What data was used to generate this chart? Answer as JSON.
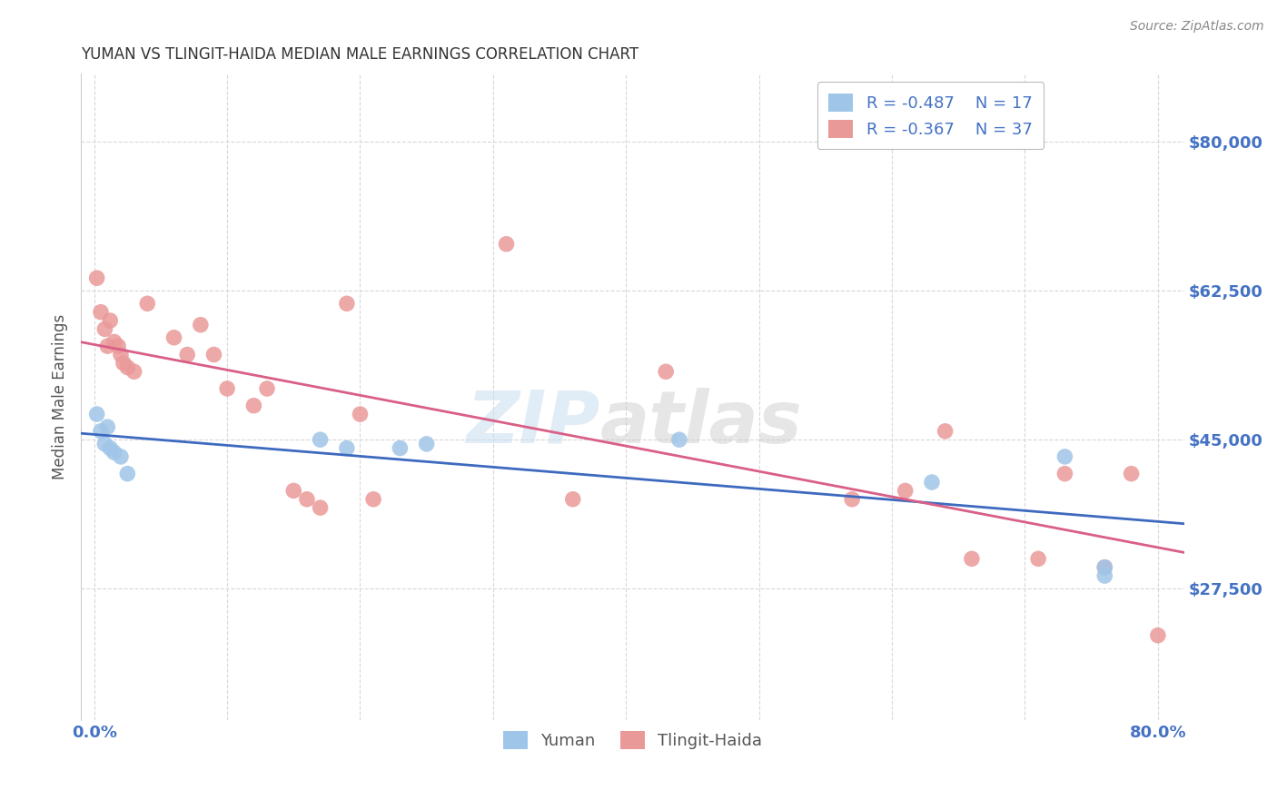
{
  "title": "YUMAN VS TLINGIT-HAIDA MEDIAN MALE EARNINGS CORRELATION CHART",
  "source": "Source: ZipAtlas.com",
  "ylabel": "Median Male Earnings",
  "yaxis_labels": [
    "$27,500",
    "$45,000",
    "$62,500",
    "$80,000"
  ],
  "yaxis_values": [
    27500,
    45000,
    62500,
    80000
  ],
  "ylim": [
    12000,
    88000
  ],
  "xlim": [
    -0.01,
    0.82
  ],
  "background_color": "#ffffff",
  "grid_color": "#d8d8d8",
  "watermark_top": "ZIP",
  "watermark_bottom": "atlas",
  "legend_label1": "Yuman",
  "legend_label2": "Tlingit-Haida",
  "R1": "-0.487",
  "N1": "17",
  "R2": "-0.367",
  "N2": "37",
  "blue_color": "#9fc5e8",
  "pink_color": "#ea9999",
  "blue_line_color": "#3d6abf",
  "pink_line_color": "#d95f86",
  "label_color": "#4472c4",
  "yuman_x": [
    0.002,
    0.005,
    0.008,
    0.01,
    0.012,
    0.015,
    0.02,
    0.025,
    0.17,
    0.19,
    0.23,
    0.25,
    0.44,
    0.63,
    0.73,
    0.76,
    0.76
  ],
  "yuman_y": [
    48000,
    46000,
    44500,
    46500,
    44000,
    43500,
    43000,
    41000,
    45000,
    44000,
    44000,
    44500,
    45000,
    40000,
    43000,
    30000,
    29000
  ],
  "tlingit_x": [
    0.002,
    0.005,
    0.008,
    0.01,
    0.012,
    0.015,
    0.018,
    0.02,
    0.022,
    0.025,
    0.03,
    0.04,
    0.06,
    0.07,
    0.08,
    0.09,
    0.1,
    0.12,
    0.13,
    0.15,
    0.16,
    0.17,
    0.19,
    0.2,
    0.21,
    0.31,
    0.36,
    0.43,
    0.57,
    0.61,
    0.64,
    0.66,
    0.71,
    0.73,
    0.76,
    0.78,
    0.8
  ],
  "tlingit_y": [
    64000,
    60000,
    58000,
    56000,
    59000,
    56500,
    56000,
    55000,
    54000,
    53500,
    53000,
    61000,
    57000,
    55000,
    58500,
    55000,
    51000,
    49000,
    51000,
    39000,
    38000,
    37000,
    61000,
    48000,
    38000,
    68000,
    38000,
    53000,
    38000,
    39000,
    46000,
    31000,
    31000,
    41000,
    30000,
    41000,
    22000
  ]
}
